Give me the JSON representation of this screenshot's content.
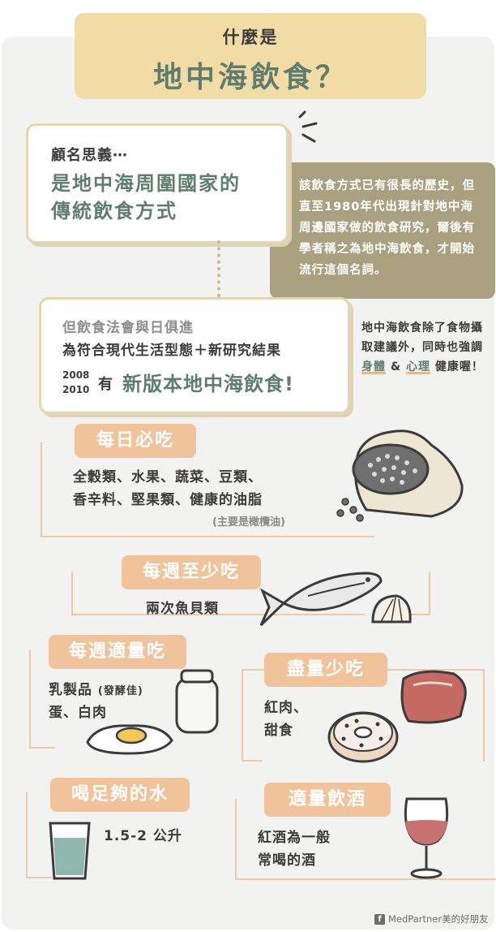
{
  "header": {
    "title_small": "什麼是",
    "title_big": "地中海飲食？"
  },
  "definition": {
    "question": "顧名思義⋯",
    "answer_line1": "是地中海周圍國家的",
    "answer_line2": "傳統飲食方式"
  },
  "history_note": {
    "text": "該飲食方式已有很長的歷史，但直至1980年代出現針對地中海周邊國家做的飲食研究，爾後有學者稱之為地中海飲食，才開始流行這個名詞。"
  },
  "evolution": {
    "line1": "但飲食法會與日俱進",
    "line2": "為符合現代生活型態＋新研究結果",
    "year1": "2008",
    "year2": "2010",
    "have": "有",
    "new_version": "新版本地中海飲食!"
  },
  "side_note": {
    "part1": "地中海飲食除了食物攝取建議外，同時也強調",
    "body": "身體",
    "amp": "&",
    "mind": "心理",
    "part2": "健康喔！"
  },
  "sections": {
    "daily": {
      "label": "每日必吃",
      "line1": "全穀類、水果、蔬菜、豆類、",
      "line2": "香辛料、堅果類、健康的油脂",
      "note": "(主要是橄欖油)"
    },
    "weekly_min": {
      "label": "每週至少吃",
      "text": "兩次魚貝類"
    },
    "weekly_moderate": {
      "label": "每週適量吃",
      "line1": "乳製品",
      "line1_note": "(發酵佳)",
      "line2": "蛋、白肉"
    },
    "limit": {
      "label": "盡量少吃",
      "line1": "紅肉、",
      "line2": "甜食"
    },
    "water": {
      "label": "喝足夠的水",
      "amount": "1.5-2 公升"
    },
    "wine": {
      "label": "適量飲酒",
      "line1": "紅酒為一般",
      "line2": "常喝的酒"
    }
  },
  "credit": {
    "icon": "facebook-icon",
    "text": "MedPartner美的好朋友"
  },
  "colors": {
    "accent_green": "#5f7d6e",
    "title_bg": "#f2dca5",
    "pill_orange": "#f1c39a",
    "note_bg": "#a8a07e",
    "background": "#f2f2f0"
  }
}
